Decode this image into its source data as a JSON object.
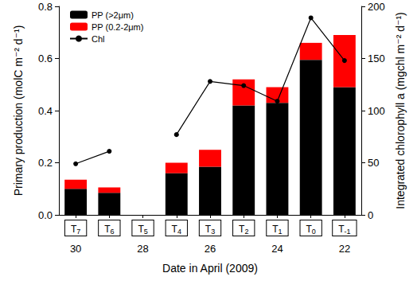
{
  "chart_data": {
    "type": "bar",
    "x_label": "Date in April (2009)",
    "y_label": "Primary production (molC m⁻² d⁻¹)",
    "y2_label": "Integrated chlorophyll a (mgchl m⁻² d⁻¹)",
    "categories": [
      "30",
      null,
      "28",
      null,
      "26",
      null,
      "24",
      null,
      "22"
    ],
    "annotations": [
      "T7",
      "T6",
      "T5",
      "T4",
      "T3",
      "T2",
      "T1",
      "T0",
      "T-1"
    ],
    "series": [
      {
        "name": "PP (>2μm)",
        "type": "bar",
        "color": "#000000",
        "values": [
          0.1,
          0.085,
          null,
          0.16,
          0.185,
          0.42,
          0.43,
          0.595,
          0.49
        ]
      },
      {
        "name": "PP (0.2-2μm)",
        "type": "bar",
        "color": "#ff0000",
        "values": [
          0.035,
          0.02,
          null,
          0.04,
          0.065,
          0.1,
          0.06,
          0.065,
          0.2
        ]
      },
      {
        "name": "Chl",
        "type": "line",
        "axis": "y2",
        "color": "#000000",
        "marker": "circle",
        "values": [
          49,
          61,
          null,
          77,
          128,
          124,
          109,
          189,
          148
        ]
      }
    ],
    "stacked": true,
    "ylim": [
      0,
      0.8
    ],
    "yticks": [
      {
        "value": 0,
        "label": "0.0"
      },
      {
        "value": 0.2,
        "label": "0.2"
      },
      {
        "value": 0.4,
        "label": "0.4"
      },
      {
        "value": 0.6,
        "label": "0.6"
      },
      {
        "value": 0.8,
        "label": "0.8"
      }
    ],
    "y2lim": [
      0,
      200
    ],
    "y2ticks": [
      0,
      50,
      100,
      150,
      200
    ],
    "legend": "upper left",
    "grid": false
  }
}
